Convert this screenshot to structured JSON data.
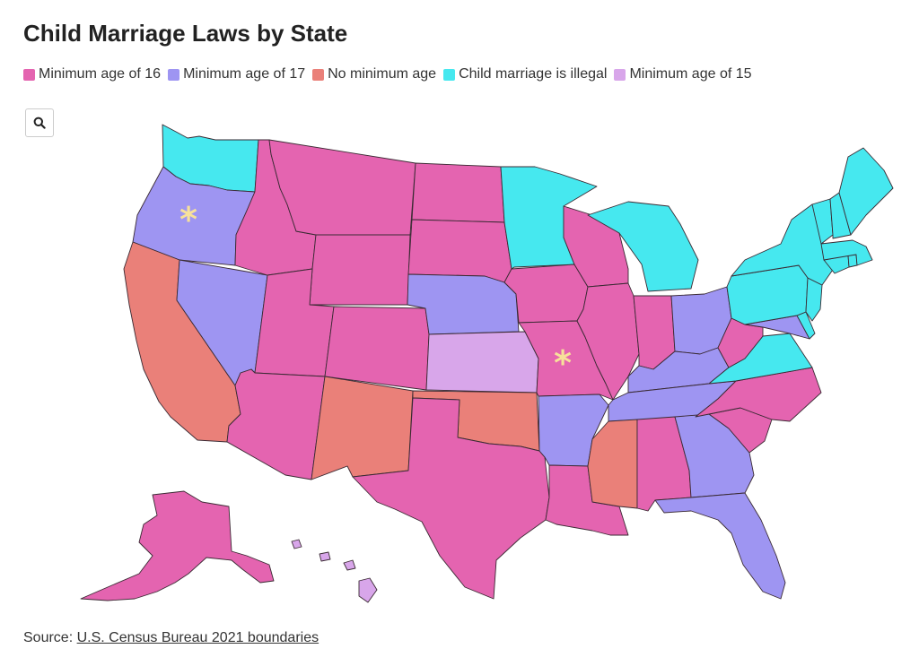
{
  "title": "Child Marriage Laws by State",
  "legend": [
    {
      "label": "Minimum age of 16",
      "color": "#e464b0"
    },
    {
      "label": "Minimum age of 17",
      "color": "#9e95f2"
    },
    {
      "label": "No minimum age",
      "color": "#ea8079"
    },
    {
      "label": "Child marriage is illegal",
      "color": "#46e8ef"
    },
    {
      "label": "Minimum age of 15",
      "color": "#d8a6ea"
    }
  ],
  "zoom": {
    "icon": "search-icon"
  },
  "asterisk_marker": "*",
  "asterisk_color": "#f7e19a",
  "source": {
    "prefix": "Source:",
    "link_text": "U.S. Census Bureau 2021 boundaries"
  },
  "states": [
    {
      "name": "washington",
      "category": "illegal"
    },
    {
      "name": "oregon",
      "category": "17",
      "asterisk": true
    },
    {
      "name": "california",
      "category": "none"
    },
    {
      "name": "nevada",
      "category": "17"
    },
    {
      "name": "idaho",
      "category": "16"
    },
    {
      "name": "montana",
      "category": "16"
    },
    {
      "name": "wyoming",
      "category": "16"
    },
    {
      "name": "utah",
      "category": "16"
    },
    {
      "name": "arizona",
      "category": "16"
    },
    {
      "name": "colorado",
      "category": "16"
    },
    {
      "name": "new-mexico",
      "category": "none"
    },
    {
      "name": "north-dakota",
      "category": "16"
    },
    {
      "name": "south-dakota",
      "category": "16"
    },
    {
      "name": "nebraska",
      "category": "17"
    },
    {
      "name": "kansas",
      "category": "15"
    },
    {
      "name": "oklahoma",
      "category": "none"
    },
    {
      "name": "texas",
      "category": "16"
    },
    {
      "name": "minnesota",
      "category": "illegal"
    },
    {
      "name": "iowa",
      "category": "16"
    },
    {
      "name": "missouri",
      "category": "16",
      "asterisk": true
    },
    {
      "name": "arkansas",
      "category": "17"
    },
    {
      "name": "louisiana",
      "category": "16"
    },
    {
      "name": "wisconsin",
      "category": "16"
    },
    {
      "name": "illinois",
      "category": "16"
    },
    {
      "name": "michigan",
      "category": "illegal"
    },
    {
      "name": "indiana",
      "category": "16"
    },
    {
      "name": "ohio",
      "category": "17"
    },
    {
      "name": "kentucky",
      "category": "17"
    },
    {
      "name": "tennessee",
      "category": "17"
    },
    {
      "name": "mississippi",
      "category": "none"
    },
    {
      "name": "alabama",
      "category": "16"
    },
    {
      "name": "georgia",
      "category": "17"
    },
    {
      "name": "florida",
      "category": "17"
    },
    {
      "name": "south-carolina",
      "category": "16"
    },
    {
      "name": "north-carolina",
      "category": "16"
    },
    {
      "name": "virginia",
      "category": "illegal"
    },
    {
      "name": "west-virginia",
      "category": "16"
    },
    {
      "name": "maryland",
      "category": "17"
    },
    {
      "name": "delaware",
      "category": "illegal"
    },
    {
      "name": "pennsylvania",
      "category": "illegal"
    },
    {
      "name": "new-jersey",
      "category": "illegal"
    },
    {
      "name": "new-york",
      "category": "illegal"
    },
    {
      "name": "connecticut",
      "category": "illegal"
    },
    {
      "name": "rhode-island",
      "category": "illegal"
    },
    {
      "name": "massachusetts",
      "category": "illegal"
    },
    {
      "name": "vermont",
      "category": "illegal"
    },
    {
      "name": "new-hampshire",
      "category": "illegal"
    },
    {
      "name": "maine",
      "category": "illegal"
    },
    {
      "name": "alaska",
      "category": "16"
    },
    {
      "name": "hawaii",
      "category": "15"
    }
  ],
  "category_colors": {
    "16": "#e464b0",
    "17": "#9e95f2",
    "none": "#ea8079",
    "illegal": "#46e8ef",
    "15": "#d8a6ea"
  }
}
